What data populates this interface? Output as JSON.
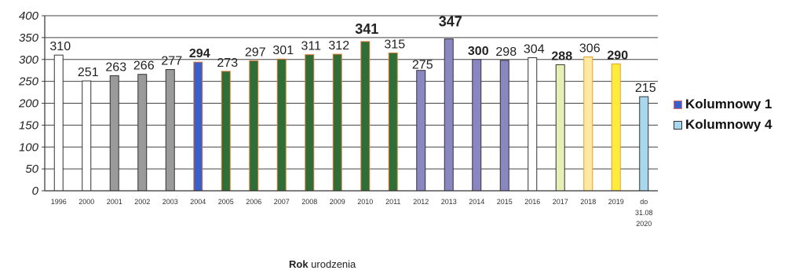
{
  "chart_data": {
    "type": "bar",
    "categories": [
      "1996",
      "2000",
      "2001",
      "2002",
      "2003",
      "2004",
      "2005",
      "2006",
      "2007",
      "2008",
      "2009",
      "2010",
      "2011",
      "2012",
      "2013",
      "2014",
      "2015",
      "2016",
      "2017",
      "2018",
      "2019",
      "do 31.08 2020"
    ],
    "values": [
      310,
      251,
      263,
      266,
      277,
      294,
      273,
      297,
      301,
      311,
      312,
      341,
      315,
      275,
      347,
      300,
      298,
      304,
      288,
      306,
      290,
      215
    ],
    "bar_colors": [
      "#ffffff",
      "#ffffff",
      "#9a9a9a",
      "#9a9a9a",
      "#9a9a9a",
      "#3a5fc8",
      "#2f6e37",
      "#2f6e37",
      "#2f6e37",
      "#2f6e37",
      "#2f6e37",
      "#2f6e37",
      "#2f6e37",
      "#8a86c2",
      "#8a86c2",
      "#8a86c2",
      "#8a86c2",
      "#ffffff",
      "#e6f0b5",
      "#ffe9a0",
      "#ffeb3b",
      "#a8d8ee"
    ],
    "ylim": [
      0,
      400
    ],
    "yticks": [
      0,
      50,
      100,
      150,
      200,
      250,
      300,
      350,
      400
    ],
    "xlabel_bold": "Rok",
    "xlabel_rest": " urodzenia",
    "grid": true,
    "legend_position": "right",
    "legend": [
      {
        "label": "Kolumnowy 1",
        "color": "#3a5fc8",
        "border": "#e07070"
      },
      {
        "label": "Kolumnowy 4",
        "color": "#a8d8ee",
        "border": "#333333"
      }
    ]
  }
}
